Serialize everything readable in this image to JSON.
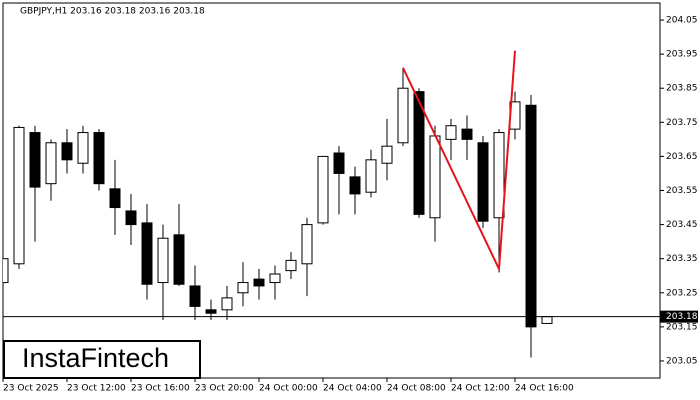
{
  "chart_data": {
    "type": "candlestick",
    "title": "GBPJPY,H1  203.16 203.18 203.16 203.18",
    "watermark": "InstaFintech",
    "categories": [
      "23 Oct 2025",
      null,
      null,
      null,
      "23 Oct 12:00",
      null,
      null,
      null,
      "23 Oct 16:00",
      null,
      null,
      null,
      "23 Oct 20:00",
      null,
      null,
      null,
      "24 Oct 00:00",
      null,
      null,
      null,
      "24 Oct 04:00",
      null,
      null,
      null,
      "24 Oct 08:00",
      null,
      null,
      null,
      "24 Oct 12:00",
      null,
      null,
      null,
      "24 Oct 16:00",
      null,
      null
    ],
    "open": [
      203.28,
      203.335,
      203.72,
      203.57,
      203.69,
      203.63,
      203.72,
      203.555,
      203.49,
      203.455,
      203.28,
      203.42,
      203.27,
      203.2,
      203.2,
      203.25,
      203.29,
      203.28,
      203.315,
      203.335,
      203.455,
      203.66,
      203.59,
      203.545,
      203.63,
      203.69,
      203.84,
      203.47,
      203.7,
      203.73,
      203.69,
      203.47,
      203.73,
      203.8,
      203.16
    ],
    "high": [
      203.36,
      203.74,
      203.74,
      203.7,
      203.73,
      203.74,
      203.73,
      203.64,
      203.54,
      203.51,
      203.45,
      203.51,
      203.33,
      203.23,
      203.27,
      203.34,
      203.32,
      203.33,
      203.37,
      203.47,
      203.65,
      203.68,
      203.62,
      203.67,
      203.76,
      203.91,
      203.85,
      203.74,
      203.76,
      203.77,
      203.71,
      203.73,
      203.84,
      203.83,
      203.18
    ],
    "low": [
      203.22,
      203.32,
      203.4,
      203.52,
      203.6,
      203.6,
      203.55,
      203.42,
      203.39,
      203.23,
      203.17,
      203.27,
      203.17,
      203.17,
      203.17,
      203.21,
      203.23,
      203.23,
      203.29,
      203.24,
      203.45,
      203.48,
      203.48,
      203.53,
      203.58,
      203.68,
      203.47,
      203.4,
      203.64,
      203.64,
      203.44,
      203.31,
      203.7,
      203.06,
      203.16
    ],
    "close": [
      203.35,
      203.735,
      203.56,
      203.69,
      203.64,
      203.72,
      203.57,
      203.5,
      203.45,
      203.275,
      203.41,
      203.275,
      203.21,
      203.19,
      203.235,
      203.28,
      203.27,
      203.305,
      203.345,
      203.45,
      203.65,
      203.6,
      203.54,
      203.64,
      203.68,
      203.85,
      203.48,
      203.71,
      203.74,
      203.7,
      203.46,
      203.72,
      203.81,
      203.15,
      203.18
    ],
    "up_color": "#ffffff",
    "down_color": "#000000",
    "pattern": {
      "color": "#e8141b",
      "at": [
        25,
        31,
        32
      ],
      "values": [
        203.91,
        203.32,
        203.96
      ]
    },
    "last_price": 203.18,
    "ylim": [
      203.0,
      204.1
    ],
    "yticks": [
      203.05,
      203.15,
      203.25,
      203.35,
      203.45,
      203.55,
      203.65,
      203.75,
      203.85,
      203.95,
      204.05
    ]
  }
}
